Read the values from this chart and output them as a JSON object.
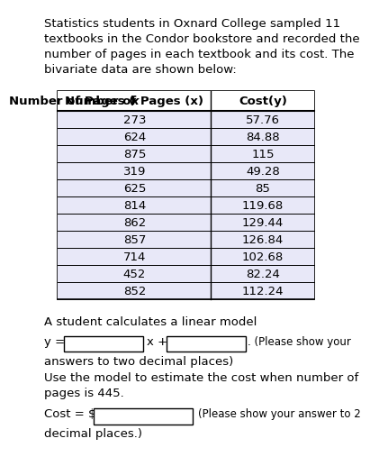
{
  "title_text": "Statistics students in Oxnard College sampled 11\ntextbooks in the Condor bookstore and recorded the\nnumber of pages in each textbook and its cost. The\nbivariate data are shown below:",
  "pages": [
    273,
    624,
    875,
    319,
    625,
    814,
    862,
    857,
    714,
    452,
    852
  ],
  "costs": [
    "57.76",
    "84.88",
    "115",
    "49.28",
    "85",
    "119.68",
    "129.44",
    "126.84",
    "102.68",
    "82.24",
    "112.24"
  ],
  "linear_model_text": "A student calculates a linear model",
  "answers_text": "answers to two decimal places)",
  "use_model_text": "Use the model to estimate the cost when number of\npages is 445.",
  "cost_answer_text": "(Please show your answer to 2",
  "decimal_text": "decimal places.)",
  "bg_color": "#ffffff",
  "table_row_bg": "#e8e8f8",
  "font_size": 9.5,
  "title_font_size": 9.5
}
